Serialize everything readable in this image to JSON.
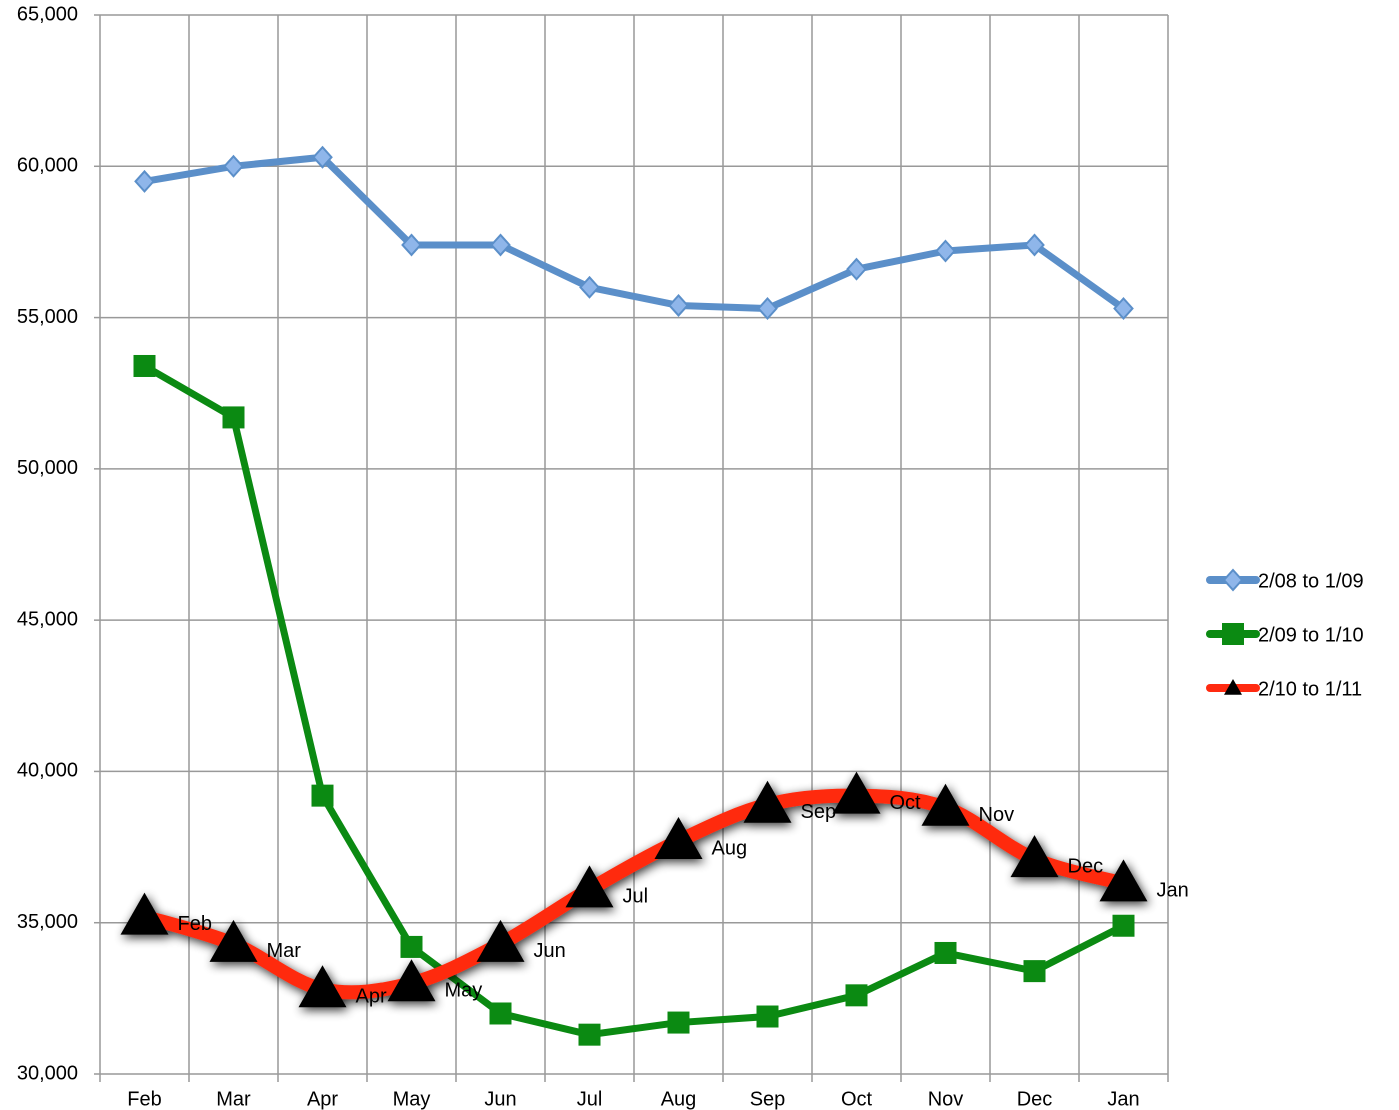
{
  "chart_data": {
    "type": "line",
    "categories": [
      "Feb",
      "Mar",
      "Apr",
      "May",
      "Jun",
      "Jul",
      "Aug",
      "Sep",
      "Oct",
      "Nov",
      "Dec",
      "Jan"
    ],
    "series": [
      {
        "name": "2/08 to 1/09",
        "color": "#5b8fc9",
        "marker": "diamond",
        "values": [
          59500,
          60000,
          60300,
          57400,
          57400,
          56000,
          55400,
          55300,
          56600,
          57200,
          57400,
          55300
        ]
      },
      {
        "name": "2/09 to 1/10",
        "color": "#0b8a12",
        "marker": "square",
        "values": [
          53400,
          51700,
          39200,
          34200,
          32000,
          31300,
          31700,
          31900,
          32600,
          34000,
          33400,
          34900
        ]
      },
      {
        "name": "2/10 to 1/11",
        "color": "#ff2a10",
        "marker": "triangle",
        "point_labels": true,
        "values": [
          35200,
          34300,
          32800,
          33000,
          34300,
          36100,
          37700,
          38900,
          39200,
          38800,
          37100,
          36300
        ]
      }
    ],
    "ylim": [
      30000,
      65000
    ],
    "yticks": [
      {
        "value": 30000,
        "label": "30,000"
      },
      {
        "value": 35000,
        "label": "35,000"
      },
      {
        "value": 40000,
        "label": "40,000"
      },
      {
        "value": 45000,
        "label": "45,000"
      },
      {
        "value": 50000,
        "label": "50,000"
      },
      {
        "value": 55000,
        "label": "55,000"
      },
      {
        "value": 60000,
        "label": "60,000"
      },
      {
        "value": 65000,
        "label": "65,000"
      }
    ],
    "grid": true,
    "legend": "right"
  }
}
